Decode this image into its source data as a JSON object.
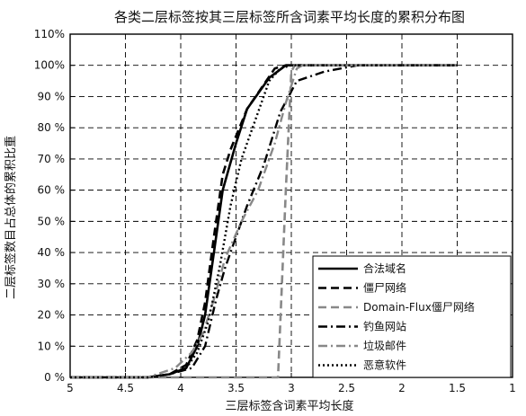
{
  "chart_data": {
    "type": "line",
    "title": "各类二层标签按其三层标签所含词素平均长度的累积分布图",
    "xlabel": "三层标签含词素平均长度",
    "ylabel": "二层标签数目占总体的累积比重",
    "xlim": [
      5,
      1
    ],
    "x_reversed": true,
    "ylim": [
      0,
      110
    ],
    "grid": true,
    "legend_position": "bottom-right",
    "x_ticks": [
      5,
      4.5,
      4,
      3.5,
      3,
      2.5,
      2,
      1.5,
      1
    ],
    "x_tick_labels": [
      "5",
      "4.5",
      "4",
      "3.5",
      "3",
      "2.5",
      "2",
      "1.5",
      "1"
    ],
    "y_ticks": [
      0,
      10,
      20,
      30,
      40,
      50,
      60,
      70,
      80,
      90,
      100,
      110
    ],
    "y_tick_labels": [
      "0 %",
      "10 %",
      "20 %",
      "30 %",
      "40 %",
      "50 %",
      "60 %",
      "70 %",
      "80 %",
      "90 %",
      "100%",
      "110%"
    ],
    "series": [
      {
        "name": "合法域名",
        "color": "#000000",
        "dash": "solid",
        "width": 2.6,
        "points": [
          [
            5,
            0
          ],
          [
            4.3,
            0
          ],
          [
            4.1,
            1
          ],
          [
            3.95,
            3
          ],
          [
            3.85,
            10
          ],
          [
            3.78,
            20
          ],
          [
            3.7,
            40
          ],
          [
            3.62,
            60
          ],
          [
            3.5,
            75
          ],
          [
            3.4,
            86
          ],
          [
            3.2,
            96
          ],
          [
            3.05,
            100
          ],
          [
            1.5,
            100
          ]
        ]
      },
      {
        "name": "僵尸网络",
        "color": "#000000",
        "dash": "dashed",
        "width": 2.6,
        "points": [
          [
            5,
            0
          ],
          [
            4.3,
            0
          ],
          [
            4.1,
            1
          ],
          [
            3.95,
            4
          ],
          [
            3.85,
            12
          ],
          [
            3.78,
            24
          ],
          [
            3.7,
            45
          ],
          [
            3.62,
            65
          ],
          [
            3.55,
            73
          ],
          [
            3.4,
            86
          ],
          [
            3.15,
            99
          ],
          [
            3.05,
            100
          ],
          [
            1.5,
            100
          ]
        ]
      },
      {
        "name": "Domain-Flux僵尸网络",
        "color": "#888888",
        "dash": "dashed",
        "width": 2.6,
        "points": [
          [
            5,
            0
          ],
          [
            3.12,
            0
          ],
          [
            3.05,
            60
          ],
          [
            3.0,
            98
          ],
          [
            2.97,
            100
          ],
          [
            1.5,
            100
          ]
        ]
      },
      {
        "name": "钓鱼网站",
        "color": "#000000",
        "dash": "dashdot",
        "width": 2.4,
        "points": [
          [
            5,
            0
          ],
          [
            4.3,
            0
          ],
          [
            4.1,
            1
          ],
          [
            3.9,
            3
          ],
          [
            3.78,
            10
          ],
          [
            3.68,
            25
          ],
          [
            3.6,
            35
          ],
          [
            3.5,
            45
          ],
          [
            3.4,
            55
          ],
          [
            3.25,
            68
          ],
          [
            3.1,
            85
          ],
          [
            2.95,
            95
          ],
          [
            2.7,
            98
          ],
          [
            2.4,
            100
          ],
          [
            1.5,
            100
          ]
        ]
      },
      {
        "name": "垃圾邮件",
        "color": "#888888",
        "dash": "dashdot",
        "width": 2.4,
        "points": [
          [
            5,
            0
          ],
          [
            4.3,
            0
          ],
          [
            4.05,
            3
          ],
          [
            3.9,
            8
          ],
          [
            3.8,
            14
          ],
          [
            3.7,
            25
          ],
          [
            3.6,
            38
          ],
          [
            3.45,
            50
          ],
          [
            3.3,
            60
          ],
          [
            3.15,
            75
          ],
          [
            3.05,
            88
          ],
          [
            2.95,
            99
          ],
          [
            2.9,
            100
          ],
          [
            1.5,
            100
          ]
        ]
      },
      {
        "name": "恶意软件",
        "color": "#000000",
        "dash": "dotted",
        "width": 2.4,
        "points": [
          [
            5,
            0
          ],
          [
            4.3,
            0
          ],
          [
            4.1,
            1
          ],
          [
            3.95,
            3
          ],
          [
            3.85,
            8
          ],
          [
            3.75,
            18
          ],
          [
            3.65,
            35
          ],
          [
            3.55,
            55
          ],
          [
            3.45,
            70
          ],
          [
            3.35,
            80
          ],
          [
            3.2,
            95
          ],
          [
            3.1,
            99
          ],
          [
            3.0,
            100
          ],
          [
            1.5,
            100
          ]
        ]
      }
    ]
  }
}
